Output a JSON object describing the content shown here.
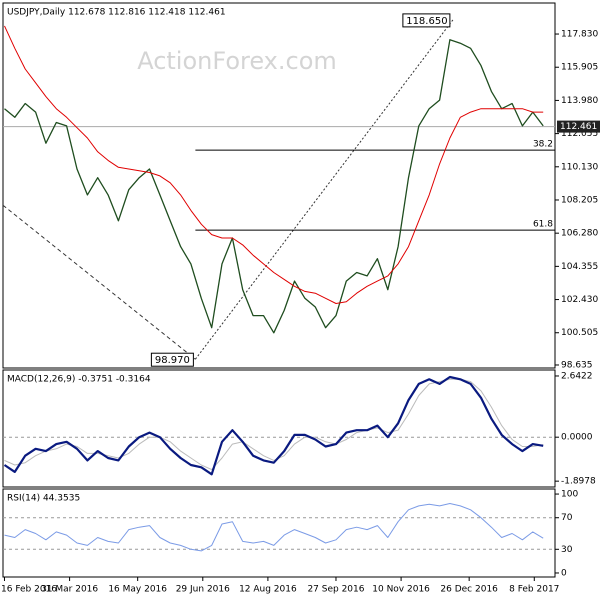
{
  "chart_data": [
    {
      "type": "line",
      "title": "USDJPY,Daily 112.678 112.816 112.418 112.461",
      "watermark": "ActionForex.com",
      "x": [
        "16 Feb 2016",
        "23 Feb 2016",
        "1 Mar 2016",
        "8 Mar 2016",
        "15 Mar 2016",
        "22 Mar 2016",
        "29 Mar 2016",
        "5 Apr 2016",
        "12 Apr 2016",
        "19 Apr 2016",
        "26 Apr 2016",
        "3 May 2016",
        "10 May 2016",
        "17 May 2016",
        "24 May 2016",
        "31 May 2016",
        "7 Jun 2016",
        "14 Jun 2016",
        "21 Jun 2016",
        "28 Jun 2016",
        "5 Jul 2016",
        "12 Jul 2016",
        "19 Jul 2016",
        "26 Jul 2016",
        "2 Aug 2016",
        "9 Aug 2016",
        "16 Aug 2016",
        "23 Aug 2016",
        "30 Aug 2016",
        "6 Sep 2016",
        "13 Sep 2016",
        "20 Sep 2016",
        "27 Sep 2016",
        "4 Oct 2016",
        "11 Oct 2016",
        "18 Oct 2016",
        "25 Oct 2016",
        "1 Nov 2016",
        "8 Nov 2016",
        "15 Nov 2016",
        "22 Nov 2016",
        "29 Nov 2016",
        "6 Dec 2016",
        "13 Dec 2016",
        "20 Dec 2016",
        "27 Dec 2016",
        "3 Jan 2017",
        "10 Jan 2017",
        "17 Jan 2017",
        "24 Jan 2017",
        "31 Jan 2017",
        "7 Feb 2017",
        "14 Feb 2017"
      ],
      "xlim": [
        "15 Feb 2016",
        "22 Feb 2017"
      ],
      "xticks": [
        "16 Feb 2016",
        "31 Mar 2016",
        "16 May 2016",
        "29 Jun 2016",
        "12 Aug 2016",
        "27 Sep 2016",
        "10 Nov 2016",
        "26 Dec 2016",
        "8 Feb 2017"
      ],
      "ylim": [
        98.46,
        119.63
      ],
      "yticks": [
        {
          "value": 117.83,
          "label": "117.830"
        },
        115.905,
        {
          "value": 113.98,
          "label": "113.980"
        },
        112.055,
        {
          "value": 110.13,
          "label": "110.130"
        },
        108.205,
        {
          "value": 106.28,
          "label": "106.280"
        },
        104.355,
        {
          "value": 102.43,
          "label": "102.430"
        },
        100.505,
        98.635
      ],
      "grid": "inner-dashed-off",
      "series": [
        {
          "color": "#1f4d1f",
          "width": 1.3,
          "values": [
            113.5,
            113.0,
            113.8,
            113.3,
            111.5,
            112.7,
            112.5,
            110.0,
            108.5,
            109.5,
            108.5,
            107.0,
            108.8,
            109.5,
            110.0,
            108.5,
            107.0,
            105.5,
            104.5,
            102.5,
            100.8,
            104.5,
            106.0,
            103.0,
            101.5,
            101.5,
            100.5,
            101.8,
            103.5,
            102.5,
            102.0,
            100.8,
            101.5,
            103.5,
            104.0,
            103.8,
            104.8,
            103.0,
            105.5,
            109.5,
            112.5,
            113.5,
            114.0,
            117.5,
            117.3,
            117.0,
            116.0,
            114.5,
            113.5,
            113.8,
            112.5,
            113.3,
            112.5
          ]
        },
        {
          "color": "#e00000",
          "width": 1,
          "values": [
            118.3,
            117.0,
            115.8,
            115.0,
            114.2,
            113.5,
            113.0,
            112.4,
            111.8,
            111.0,
            110.5,
            110.1,
            110.0,
            109.9,
            109.8,
            109.6,
            109.2,
            108.5,
            107.6,
            106.8,
            106.2,
            106.0,
            106.0,
            105.6,
            105.0,
            104.5,
            104.0,
            103.6,
            103.2,
            102.9,
            102.8,
            102.5,
            102.2,
            102.3,
            102.8,
            103.2,
            103.5,
            103.8,
            104.5,
            105.5,
            107.0,
            108.5,
            110.3,
            111.8,
            113.0,
            113.3,
            113.5,
            113.5,
            113.5,
            113.5,
            113.5,
            113.3,
            113.3
          ]
        }
      ],
      "annotations": [
        {
          "x": "24 Jun 2016",
          "value": 98.97,
          "label": "98.970"
        },
        {
          "x": "15 Dec 2016",
          "value": 118.65,
          "label": "118.650"
        }
      ],
      "trend_start": {
        "x": "15 Feb 2016",
        "value": 107.9
      },
      "levels": [
        {
          "value": 111.1,
          "label": "38.2"
        },
        {
          "value": 106.46,
          "label": "61.8"
        }
      ],
      "last": 112.461
    },
    {
      "type": "line",
      "title": "MACD(12,26,9) -0.3751 -0.3164",
      "ylim": [
        -2.15,
        2.9
      ],
      "yticks": [
        2.6422,
        {
          "value": 0,
          "label": "0.0000"
        },
        -1.8978
      ],
      "grid": "inner-dashed",
      "series": [
        {
          "color": "#bbbbbb",
          "width": 1,
          "values": [
            -1.0,
            -1.2,
            -1.1,
            -0.8,
            -0.6,
            -0.5,
            -0.3,
            -0.4,
            -0.7,
            -0.7,
            -0.8,
            -0.9,
            -0.7,
            -0.3,
            0.0,
            0.0,
            -0.2,
            -0.6,
            -0.9,
            -1.2,
            -1.4,
            -0.9,
            -0.3,
            -0.2,
            -0.5,
            -0.8,
            -1.0,
            -0.8,
            -0.3,
            0.0,
            0.0,
            -0.2,
            -0.3,
            -0.1,
            0.2,
            0.3,
            0.4,
            0.2,
            0.3,
            1.0,
            1.8,
            2.3,
            2.4,
            2.5,
            2.5,
            2.4,
            2.0,
            1.3,
            0.5,
            -0.1,
            -0.4,
            -0.4,
            -0.32
          ]
        },
        {
          "color": "#0a1a80",
          "width": 2.2,
          "values": [
            -1.2,
            -1.5,
            -0.8,
            -0.5,
            -0.6,
            -0.3,
            -0.2,
            -0.5,
            -1.0,
            -0.6,
            -0.9,
            -1.0,
            -0.4,
            0.0,
            0.2,
            0.0,
            -0.5,
            -0.9,
            -1.2,
            -1.3,
            -1.6,
            -0.2,
            0.3,
            -0.2,
            -0.8,
            -1.0,
            -1.1,
            -0.6,
            0.1,
            0.1,
            -0.1,
            -0.4,
            -0.3,
            0.2,
            0.3,
            0.3,
            0.5,
            0.0,
            0.6,
            1.6,
            2.3,
            2.5,
            2.3,
            2.6,
            2.5,
            2.3,
            1.7,
            0.8,
            0.1,
            -0.3,
            -0.6,
            -0.3,
            -0.37
          ]
        }
      ]
    },
    {
      "type": "line",
      "title": "RSI(14) 44.3535",
      "ylim": [
        -5.1,
        106.4
      ],
      "yticks": [
        100,
        70,
        30,
        0
      ],
      "grid": "inner-dashed",
      "series": [
        {
          "color": "#7b9be6",
          "width": 1,
          "values": [
            48,
            45,
            55,
            50,
            42,
            52,
            48,
            38,
            35,
            45,
            40,
            38,
            55,
            58,
            60,
            45,
            38,
            35,
            30,
            28,
            35,
            62,
            65,
            40,
            38,
            40,
            35,
            48,
            55,
            50,
            45,
            38,
            42,
            55,
            58,
            55,
            60,
            45,
            65,
            80,
            85,
            87,
            85,
            88,
            85,
            80,
            70,
            58,
            45,
            50,
            42,
            52,
            44
          ]
        }
      ]
    }
  ]
}
